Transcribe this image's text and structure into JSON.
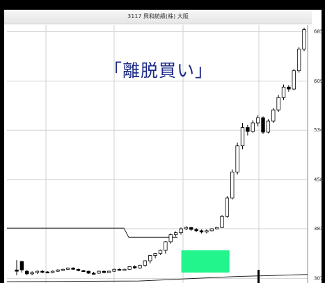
{
  "chart_data": {
    "type": "candlestick",
    "title": "3117 興和紡績(株) 大阪",
    "annotation": "「離脱買い」",
    "yticks": [
      "685",
      "609",
      "534",
      "458",
      "383",
      "307"
    ],
    "ylim": [
      300,
      695
    ],
    "grid": true,
    "support_line_level": 384,
    "lower_line_level": 313,
    "highlight_box": {
      "color": "#21f58c",
      "y_range": [
        316,
        350
      ],
      "x_range": [
        0.58,
        0.74
      ]
    },
    "candles": [
      {
        "open": 320,
        "close": 318,
        "high": 335,
        "low": 312,
        "color": "black"
      },
      {
        "open": 333,
        "close": 320,
        "high": 334,
        "low": 316,
        "color": "black"
      },
      {
        "open": 318,
        "close": 314,
        "high": 320,
        "low": 312,
        "color": "black"
      },
      {
        "open": 314,
        "close": 316,
        "high": 318,
        "low": 312,
        "color": "white"
      },
      {
        "open": 316,
        "close": 318,
        "high": 319,
        "low": 314,
        "color": "white"
      },
      {
        "open": 318,
        "close": 317,
        "high": 320,
        "low": 315,
        "color": "black"
      },
      {
        "open": 317,
        "close": 316,
        "high": 318,
        "low": 315,
        "color": "black"
      },
      {
        "open": 316,
        "close": 318,
        "high": 319,
        "low": 315,
        "color": "white"
      },
      {
        "open": 318,
        "close": 320,
        "high": 321,
        "low": 317,
        "color": "white"
      },
      {
        "open": 320,
        "close": 321,
        "high": 322,
        "low": 318,
        "color": "white"
      },
      {
        "open": 321,
        "close": 323,
        "high": 324,
        "low": 320,
        "color": "white"
      },
      {
        "open": 323,
        "close": 321,
        "high": 324,
        "low": 320,
        "color": "black"
      },
      {
        "open": 321,
        "close": 319,
        "high": 322,
        "low": 318,
        "color": "black"
      },
      {
        "open": 319,
        "close": 318,
        "high": 320,
        "low": 317,
        "color": "black"
      },
      {
        "open": 318,
        "close": 315,
        "high": 319,
        "low": 314,
        "color": "black"
      },
      {
        "open": 315,
        "close": 315,
        "high": 317,
        "low": 313,
        "color": "black"
      },
      {
        "open": 315,
        "close": 318,
        "high": 319,
        "low": 314,
        "color": "white"
      },
      {
        "open": 318,
        "close": 316,
        "high": 319,
        "low": 315,
        "color": "black"
      },
      {
        "open": 316,
        "close": 318,
        "high": 319,
        "low": 315,
        "color": "white"
      },
      {
        "open": 318,
        "close": 321,
        "high": 322,
        "low": 317,
        "color": "white"
      },
      {
        "open": 321,
        "close": 320,
        "high": 322,
        "low": 319,
        "color": "black"
      },
      {
        "open": 320,
        "close": 321,
        "high": 322,
        "low": 319,
        "color": "white"
      },
      {
        "open": 321,
        "close": 325,
        "high": 326,
        "low": 320,
        "color": "white"
      },
      {
        "open": 325,
        "close": 323,
        "high": 327,
        "low": 322,
        "color": "black"
      },
      {
        "open": 323,
        "close": 327,
        "high": 328,
        "low": 322,
        "color": "white"
      },
      {
        "open": 327,
        "close": 334,
        "high": 335,
        "low": 325,
        "color": "white"
      },
      {
        "open": 334,
        "close": 342,
        "high": 343,
        "low": 330,
        "color": "white"
      },
      {
        "open": 342,
        "close": 345,
        "high": 346,
        "low": 338,
        "color": "white"
      },
      {
        "open": 345,
        "close": 350,
        "high": 351,
        "low": 343,
        "color": "white"
      },
      {
        "open": 350,
        "close": 363,
        "high": 364,
        "low": 345,
        "color": "white"
      },
      {
        "open": 363,
        "close": 374,
        "high": 376,
        "low": 360,
        "color": "white"
      },
      {
        "open": 374,
        "close": 377,
        "high": 379,
        "low": 371,
        "color": "white"
      },
      {
        "open": 377,
        "close": 383,
        "high": 385,
        "low": 374,
        "color": "white"
      },
      {
        "open": 383,
        "close": 385,
        "high": 387,
        "low": 381,
        "color": "white"
      },
      {
        "open": 385,
        "close": 382,
        "high": 386,
        "low": 380,
        "color": "black"
      },
      {
        "open": 382,
        "close": 380,
        "high": 384,
        "low": 378,
        "color": "black"
      },
      {
        "open": 380,
        "close": 378,
        "high": 382,
        "low": 376,
        "color": "black"
      },
      {
        "open": 378,
        "close": 380,
        "high": 382,
        "low": 376,
        "color": "white"
      },
      {
        "open": 380,
        "close": 383,
        "high": 384,
        "low": 379,
        "color": "white"
      },
      {
        "open": 383,
        "close": 385,
        "high": 386,
        "low": 382,
        "color": "white"
      },
      {
        "open": 385,
        "close": 402,
        "high": 404,
        "low": 384,
        "color": "white"
      },
      {
        "open": 402,
        "close": 430,
        "high": 433,
        "low": 400,
        "color": "white"
      },
      {
        "open": 430,
        "close": 470,
        "high": 474,
        "low": 428,
        "color": "white"
      },
      {
        "open": 470,
        "close": 510,
        "high": 515,
        "low": 466,
        "color": "white"
      },
      {
        "open": 510,
        "close": 538,
        "high": 545,
        "low": 505,
        "color": "white"
      },
      {
        "open": 538,
        "close": 532,
        "high": 542,
        "low": 526,
        "color": "black"
      },
      {
        "open": 532,
        "close": 545,
        "high": 549,
        "low": 530,
        "color": "white"
      },
      {
        "open": 545,
        "close": 553,
        "high": 557,
        "low": 540,
        "color": "white"
      },
      {
        "open": 553,
        "close": 531,
        "high": 555,
        "low": 528,
        "color": "black"
      },
      {
        "open": 531,
        "close": 548,
        "high": 551,
        "low": 529,
        "color": "white"
      },
      {
        "open": 548,
        "close": 565,
        "high": 568,
        "low": 545,
        "color": "white"
      },
      {
        "open": 565,
        "close": 584,
        "high": 588,
        "low": 562,
        "color": "white"
      },
      {
        "open": 584,
        "close": 600,
        "high": 604,
        "low": 580,
        "color": "white"
      },
      {
        "open": 600,
        "close": 597,
        "high": 603,
        "low": 593,
        "color": "black"
      },
      {
        "open": 597,
        "close": 625,
        "high": 628,
        "low": 595,
        "color": "white"
      },
      {
        "open": 625,
        "close": 658,
        "high": 661,
        "low": 622,
        "color": "white"
      },
      {
        "open": 658,
        "close": 688,
        "high": 691,
        "low": 655,
        "color": "white"
      }
    ]
  }
}
